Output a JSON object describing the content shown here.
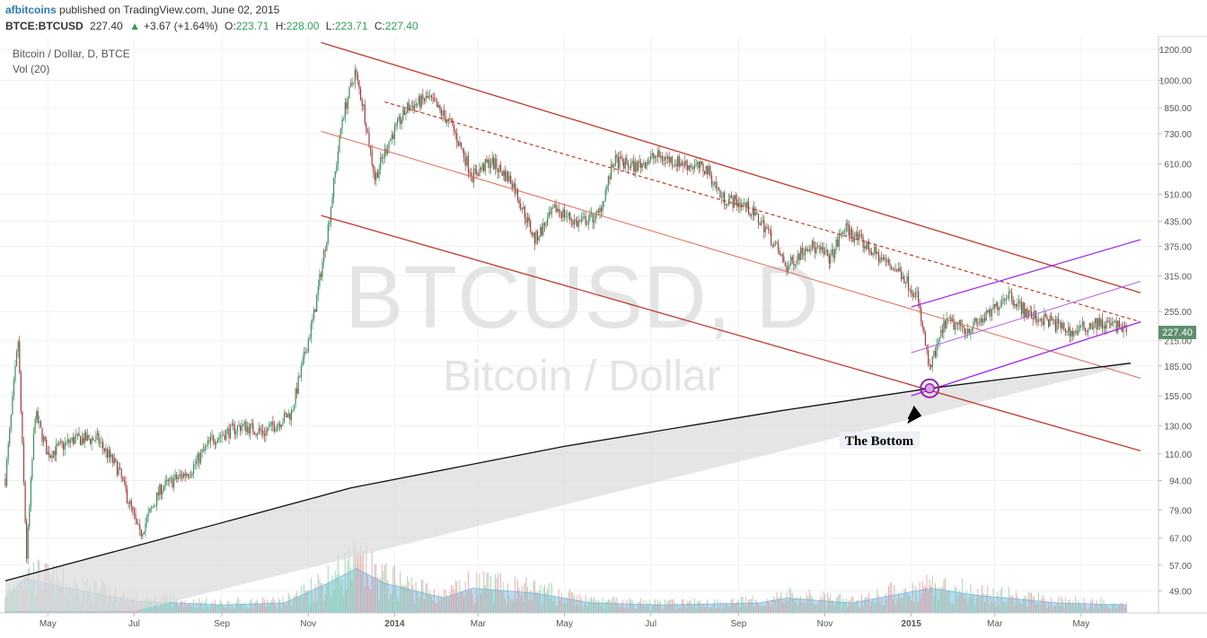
{
  "header": {
    "author": "afbitcoins",
    "published_text": "published on TradingView.com, June 02, 2015",
    "symbol": "BTCE:BTCUSD",
    "last": "227.40",
    "change_arrow": "▲",
    "change": "+3.67 (+1.64%)",
    "o_label": "O:",
    "o": "223.71",
    "h_label": "H:",
    "h": "228.00",
    "l_label": "L:",
    "l": "223.71",
    "c_label": "C:",
    "c": "227.40"
  },
  "legend": {
    "series": "Bitcoin / Dollar, D, BTCE",
    "indicator": "Vol (20)"
  },
  "watermark": {
    "main": "BTCUSD, D",
    "sub": "Bitcoin / Dollar"
  },
  "annotation": {
    "text": "The Bottom"
  },
  "price_badge": "227.40",
  "colors": {
    "up": "#3a8f5c",
    "down": "#a33b3b",
    "channel": "#c0392b",
    "purple": "#a020f0",
    "trendline": "#111111",
    "volume_fill": "#9fd0f0",
    "badge": "#5e8f6e"
  },
  "chart_data": {
    "type": "candlestick",
    "title": "Bitcoin / Dollar, D, BTCE",
    "yscale": "log",
    "ylim": [
      43,
      1300
    ],
    "x_range": [
      "2013-04-01",
      "2015-06-12"
    ],
    "y_ticks": [
      "1200.00",
      "1000.00",
      "850.00",
      "730.00",
      "610.00",
      "510.00",
      "435.00",
      "375.00",
      "315.00",
      "255.00",
      "215.00",
      "185.00",
      "155.00",
      "130.00",
      "110.00",
      "94.00",
      "79.00",
      "67.00",
      "57.00",
      "49.00"
    ],
    "x_ticks": [
      {
        "date": "2013-05-01",
        "label": "May"
      },
      {
        "date": "2013-07-01",
        "label": "Jul"
      },
      {
        "date": "2013-09-01",
        "label": "Sep"
      },
      {
        "date": "2013-11-01",
        "label": "Nov"
      },
      {
        "date": "2014-01-01",
        "label": "2014"
      },
      {
        "date": "2014-03-01",
        "label": "Mar"
      },
      {
        "date": "2014-05-01",
        "label": "May"
      },
      {
        "date": "2014-07-01",
        "label": "Jul"
      },
      {
        "date": "2014-09-01",
        "label": "Sep"
      },
      {
        "date": "2014-11-01",
        "label": "Nov"
      },
      {
        "date": "2015-01-01",
        "label": "2015"
      },
      {
        "date": "2015-03-01",
        "label": "Mar"
      },
      {
        "date": "2015-05-01",
        "label": "May"
      }
    ],
    "price_path": [
      [
        "2013-04-01",
        95
      ],
      [
        "2013-04-10",
        215
      ],
      [
        "2013-04-16",
        60
      ],
      [
        "2013-04-22",
        140
      ],
      [
        "2013-05-01",
        110
      ],
      [
        "2013-05-20",
        120
      ],
      [
        "2013-06-05",
        120
      ],
      [
        "2013-06-20",
        100
      ],
      [
        "2013-07-05",
        68
      ],
      [
        "2013-07-20",
        90
      ],
      [
        "2013-08-10",
        100
      ],
      [
        "2013-08-25",
        120
      ],
      [
        "2013-09-15",
        130
      ],
      [
        "2013-10-01",
        125
      ],
      [
        "2013-10-20",
        140
      ],
      [
        "2013-11-05",
        250
      ],
      [
        "2013-11-15",
        420
      ],
      [
        "2013-11-25",
        800
      ],
      [
        "2013-12-04",
        1050
      ],
      [
        "2013-12-10",
        850
      ],
      [
        "2013-12-18",
        560
      ],
      [
        "2013-12-28",
        700
      ],
      [
        "2014-01-10",
        850
      ],
      [
        "2014-01-25",
        900
      ],
      [
        "2014-02-10",
        770
      ],
      [
        "2014-02-25",
        570
      ],
      [
        "2014-03-10",
        620
      ],
      [
        "2014-03-25",
        550
      ],
      [
        "2014-04-10",
        390
      ],
      [
        "2014-04-25",
        470
      ],
      [
        "2014-05-10",
        430
      ],
      [
        "2014-05-25",
        450
      ],
      [
        "2014-06-05",
        620
      ],
      [
        "2014-06-20",
        600
      ],
      [
        "2014-07-05",
        640
      ],
      [
        "2014-07-25",
        610
      ],
      [
        "2014-08-10",
        590
      ],
      [
        "2014-08-20",
        500
      ],
      [
        "2014-09-05",
        480
      ],
      [
        "2014-09-20",
        420
      ],
      [
        "2014-10-05",
        330
      ],
      [
        "2014-10-20",
        380
      ],
      [
        "2014-11-05",
        350
      ],
      [
        "2014-11-15",
        420
      ],
      [
        "2014-11-25",
        390
      ],
      [
        "2014-12-10",
        350
      ],
      [
        "2014-12-25",
        320
      ],
      [
        "2015-01-05",
        280
      ],
      [
        "2015-01-14",
        180
      ],
      [
        "2015-01-25",
        240
      ],
      [
        "2015-02-10",
        230
      ],
      [
        "2015-02-25",
        250
      ],
      [
        "2015-03-10",
        285
      ],
      [
        "2015-03-25",
        250
      ],
      [
        "2015-04-10",
        240
      ],
      [
        "2015-04-25",
        225
      ],
      [
        "2015-05-10",
        238
      ],
      [
        "2015-05-25",
        235
      ],
      [
        "2015-06-02",
        227.4
      ]
    ],
    "volume_scale_note": "",
    "volume_path": [
      [
        "2013-04-01",
        0.15
      ],
      [
        "2013-04-15",
        0.35
      ],
      [
        "2013-05-15",
        0.25
      ],
      [
        "2013-07-01",
        0.12
      ],
      [
        "2013-09-01",
        0.08
      ],
      [
        "2013-10-15",
        0.1
      ],
      [
        "2013-11-15",
        0.3
      ],
      [
        "2013-12-05",
        0.45
      ],
      [
        "2013-12-25",
        0.3
      ],
      [
        "2014-02-05",
        0.15
      ],
      [
        "2014-02-25",
        0.25
      ],
      [
        "2014-04-10",
        0.2
      ],
      [
        "2014-05-20",
        0.1
      ],
      [
        "2014-07-10",
        0.08
      ],
      [
        "2014-09-15",
        0.1
      ],
      [
        "2014-10-05",
        0.15
      ],
      [
        "2014-11-20",
        0.1
      ],
      [
        "2015-01-15",
        0.25
      ],
      [
        "2015-02-15",
        0.18
      ],
      [
        "2015-04-15",
        0.1
      ],
      [
        "2015-06-02",
        0.08
      ]
    ],
    "overlays": {
      "channel_upper": [
        [
          "2013-11-10",
          1250
        ],
        [
          "2015-06-12",
          285
        ]
      ],
      "channel_middle_dashed": [
        [
          "2013-12-25",
          880
        ],
        [
          "2015-06-12",
          240
        ]
      ],
      "channel_middle": [
        [
          "2013-11-10",
          740
        ],
        [
          "2015-06-12",
          172
        ]
      ],
      "channel_lower": [
        [
          "2013-11-10",
          450
        ],
        [
          "2015-06-12",
          112
        ]
      ],
      "support_curve": [
        [
          "2013-04-01",
          52
        ],
        [
          "2013-07-10",
          65
        ],
        [
          "2013-12-01",
          90
        ],
        [
          "2014-05-01",
          115
        ],
        [
          "2014-10-01",
          142
        ],
        [
          "2015-01-14",
          162
        ],
        [
          "2015-06-05",
          188
        ]
      ],
      "purple_upper": [
        [
          "2015-01-01",
          262
        ],
        [
          "2015-06-12",
          390
        ]
      ],
      "purple_middle": [
        [
          "2015-01-01",
          200
        ],
        [
          "2015-06-12",
          305
        ]
      ],
      "purple_lower": [
        [
          "2015-01-01",
          155
        ],
        [
          "2015-06-12",
          240
        ]
      ],
      "bottom_point": [
        "2015-01-14",
        162
      ]
    }
  }
}
